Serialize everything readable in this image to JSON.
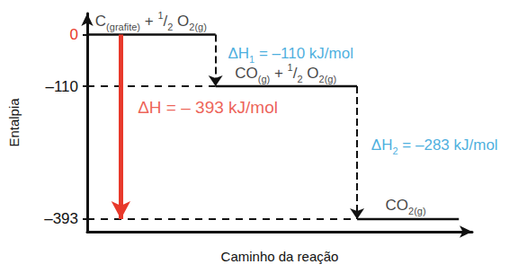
{
  "chart_data": {
    "type": "enthalpy",
    "y_label": "Entalpia",
    "x_label": "Caminho da reação",
    "ylim": [
      -420,
      45
    ],
    "yticks": [
      {
        "value": 0,
        "label": "0",
        "color": "#e8392b"
      },
      {
        "value": -110,
        "label": "–110"
      },
      {
        "value": -393,
        "label": "–393"
      }
    ],
    "levels": [
      {
        "value": 0,
        "label": [
          {
            "text": "C"
          },
          {
            "text": "(grafite)",
            "sub": true
          },
          {
            "text": " + "
          },
          {
            "text": "1",
            "sup": true
          },
          {
            "text": "/"
          },
          {
            "text": "2",
            "sub": true
          },
          {
            "text": " O"
          },
          {
            "text": "2(g)",
            "sub": true
          }
        ]
      },
      {
        "value": -110,
        "label": [
          {
            "text": "CO"
          },
          {
            "text": "(g)",
            "sub": true
          },
          {
            "text": " + "
          },
          {
            "text": "1",
            "sup": true
          },
          {
            "text": "/"
          },
          {
            "text": "2",
            "sub": true
          },
          {
            "text": " O"
          },
          {
            "text": "2(g)",
            "sub": true
          }
        ]
      },
      {
        "value": -393,
        "label": [
          {
            "text": "CO"
          },
          {
            "text": "2(g)",
            "sub": true
          }
        ]
      }
    ],
    "steps": [
      {
        "value": -110,
        "color": "#1a9ad6",
        "label": [
          {
            "text": "ΔH"
          },
          {
            "text": "1",
            "sub": true
          },
          {
            "text": " = –110 kJ/mol"
          }
        ]
      },
      {
        "value": -283,
        "color": "#1a9ad6",
        "label": [
          {
            "text": "ΔH"
          },
          {
            "text": "2",
            "sub": true
          },
          {
            "text": " = –283 kJ/mol"
          }
        ]
      }
    ],
    "total": {
      "value": -393,
      "color": "#e8392b",
      "label": [
        {
          "text": "ΔH = – 393 kJ/mol"
        }
      ]
    }
  }
}
